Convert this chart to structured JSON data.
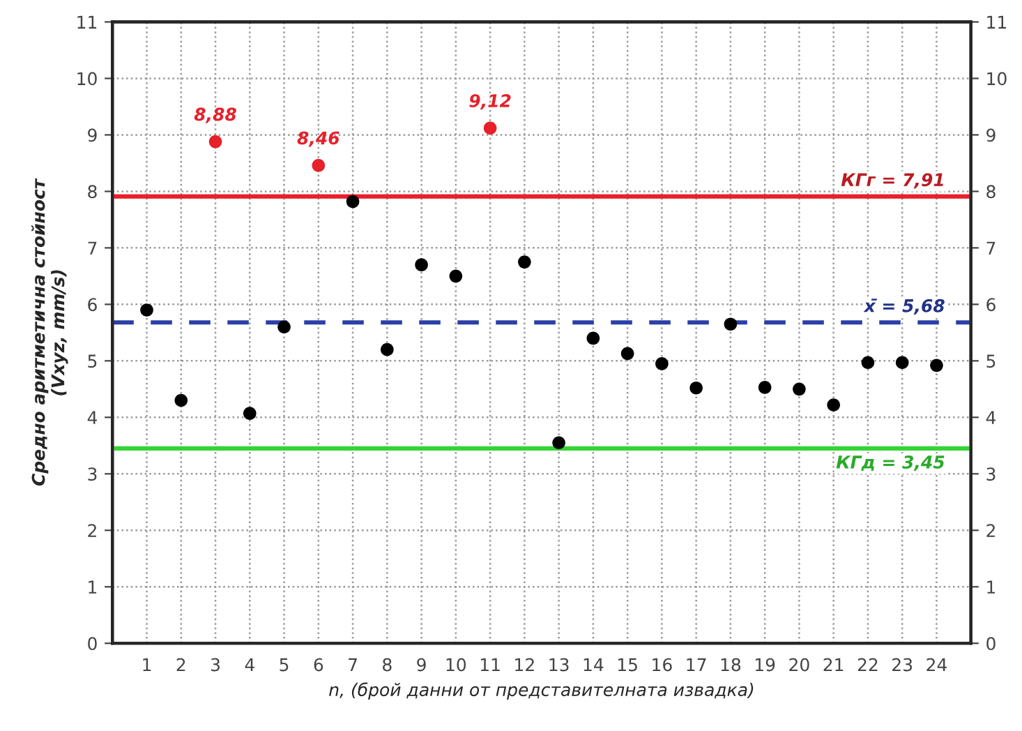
{
  "chart_data": {
    "type": "scatter",
    "xlabel": "n, (брой данни от представителната извадка)",
    "ylabel": "Средно аритметична стойност\n(Vxyz, mm/s)",
    "x": [
      1,
      2,
      3,
      4,
      5,
      6,
      7,
      8,
      9,
      10,
      11,
      12,
      13,
      14,
      15,
      16,
      17,
      18,
      19,
      20,
      21,
      22,
      23,
      24
    ],
    "series": [
      {
        "values": [
          5.9,
          4.3,
          8.88,
          4.07,
          5.6,
          8.46,
          7.82,
          5.2,
          6.7,
          6.5,
          9.12,
          6.75,
          3.55,
          5.4,
          5.13,
          4.95,
          4.52,
          5.65,
          4.53,
          4.5,
          4.22,
          4.97,
          4.97,
          4.92
        ],
        "colors": [
          "#000000",
          "#000000",
          "#e8202a",
          "#000000",
          "#000000",
          "#e8202a",
          "#000000",
          "#000000",
          "#000000",
          "#000000",
          "#e8202a",
          "#000000",
          "#000000",
          "#000000",
          "#000000",
          "#000000",
          "#000000",
          "#000000",
          "#000000",
          "#000000",
          "#000000",
          "#000000",
          "#000000",
          "#000000"
        ],
        "value_labels": [
          null,
          null,
          "8,88",
          null,
          null,
          "8,46",
          null,
          null,
          null,
          null,
          "9,12",
          null,
          null,
          null,
          null,
          null,
          null,
          null,
          null,
          null,
          null,
          null,
          null,
          null
        ]
      }
    ],
    "xlim": [
      0,
      25
    ],
    "xticks": [
      1,
      2,
      3,
      4,
      5,
      6,
      7,
      8,
      9,
      10,
      11,
      12,
      13,
      14,
      15,
      16,
      17,
      18,
      19,
      20,
      21,
      22,
      23,
      24
    ],
    "ylim": [
      0,
      11
    ],
    "yticks": [
      0,
      1,
      2,
      3,
      4,
      5,
      6,
      7,
      8,
      9,
      10,
      11
    ],
    "y2lim": [
      0,
      11
    ],
    "y2ticks": [
      0,
      1,
      2,
      3,
      4,
      5,
      6,
      7,
      8,
      9,
      10,
      11
    ],
    "ref_lines": [
      {
        "axis": "y",
        "value": 7.91,
        "label": "КГг = 7,91",
        "color": "#e8202a",
        "line_style": "solid"
      },
      {
        "axis": "y",
        "value": 5.68,
        "label": "x̄ = 5,68",
        "color": "#2b3fa8",
        "line_style": "dashed"
      },
      {
        "axis": "y",
        "value": 3.45,
        "label": "КГд = 3,45",
        "color": "#35d435",
        "line_style": "solid"
      }
    ],
    "grid": true,
    "marker": "circle",
    "legend": false
  }
}
